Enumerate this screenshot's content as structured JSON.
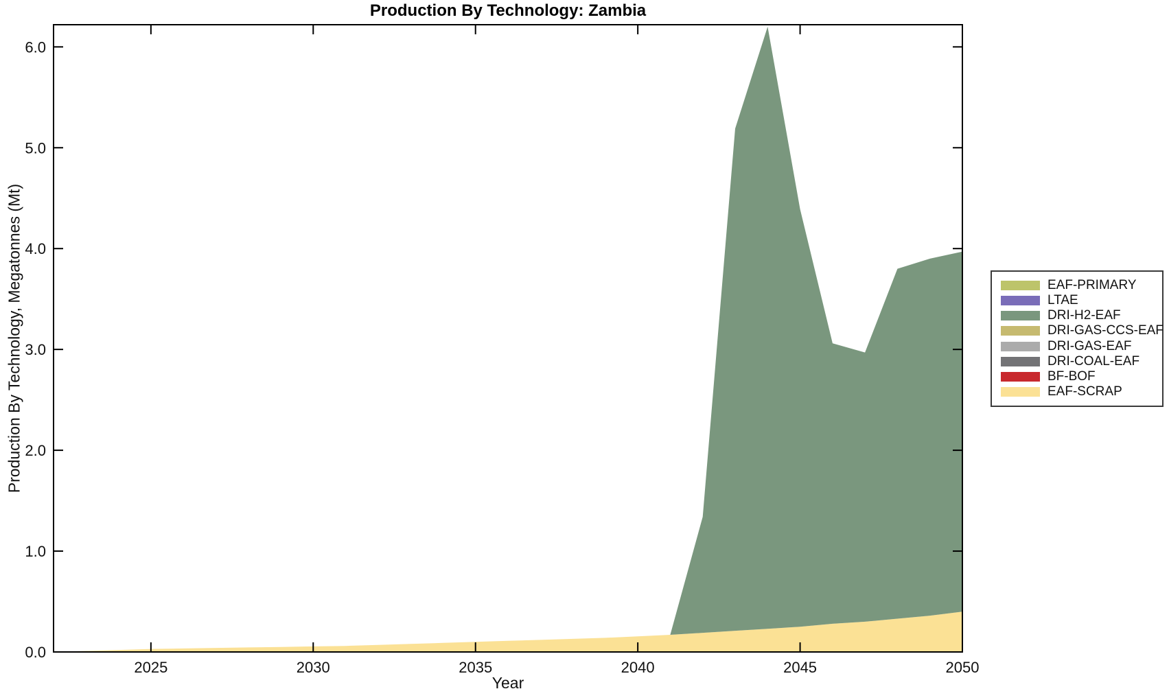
{
  "chart_data": {
    "type": "area",
    "stacked": true,
    "title": "Production By Technology: Zambia",
    "xlabel": "Year",
    "ylabel": "Production By Technology, Megatonnes (Mt)",
    "xlim": [
      2022,
      2050
    ],
    "ylim": [
      0,
      6.22
    ],
    "xticks": [
      2025,
      2030,
      2035,
      2040,
      2045,
      2050
    ],
    "yticks": [
      0.0,
      1.0,
      2.0,
      3.0,
      4.0,
      5.0,
      6.0
    ],
    "grid": false,
    "background": "#ffffff",
    "axis_color": "#000000",
    "legend_position": "outside-right",
    "stack_note": "series listed in legend order (top of stack first); areas are stacked bottom-to-top in reverse of this list",
    "years": [
      2022,
      2023,
      2024,
      2025,
      2026,
      2027,
      2028,
      2029,
      2030,
      2031,
      2032,
      2033,
      2034,
      2035,
      2036,
      2037,
      2038,
      2039,
      2040,
      2041,
      2042,
      2043,
      2044,
      2045,
      2046,
      2047,
      2048,
      2049,
      2050
    ],
    "series": [
      {
        "name": "EAF-PRIMARY",
        "color": "#bdc46a",
        "values": [
          0,
          0,
          0,
          0,
          0,
          0,
          0,
          0,
          0,
          0,
          0,
          0,
          0,
          0,
          0,
          0,
          0,
          0,
          0,
          0,
          0,
          0,
          0,
          0,
          0,
          0,
          0,
          0,
          0
        ]
      },
      {
        "name": "LTAE",
        "color": "#7a6db8",
        "values": [
          0,
          0,
          0,
          0,
          0,
          0,
          0,
          0,
          0,
          0,
          0,
          0,
          0,
          0,
          0,
          0,
          0,
          0,
          0,
          0,
          0,
          0,
          0,
          0,
          0,
          0,
          0,
          0,
          0
        ]
      },
      {
        "name": "DRI-H2-EAF",
        "color": "#7a977e",
        "values": [
          0,
          0,
          0,
          0,
          0,
          0,
          0,
          0,
          0,
          0,
          0,
          0,
          0,
          0,
          0,
          0,
          0,
          0,
          0,
          0,
          1.15,
          4.98,
          5.97,
          4.14,
          2.78,
          2.67,
          3.47,
          3.54,
          3.57
        ]
      },
      {
        "name": "DRI-GAS-CCS-EAF",
        "color": "#c6ba70",
        "values": [
          0,
          0,
          0,
          0,
          0,
          0,
          0,
          0,
          0,
          0,
          0,
          0,
          0,
          0,
          0,
          0,
          0,
          0,
          0,
          0,
          0,
          0,
          0,
          0,
          0,
          0,
          0,
          0,
          0
        ]
      },
      {
        "name": "DRI-GAS-EAF",
        "color": "#ababab",
        "values": [
          0,
          0,
          0,
          0,
          0,
          0,
          0,
          0,
          0,
          0,
          0,
          0,
          0,
          0,
          0,
          0,
          0,
          0,
          0,
          0,
          0,
          0,
          0,
          0,
          0,
          0,
          0,
          0,
          0
        ]
      },
      {
        "name": "DRI-COAL-EAF",
        "color": "#737376",
        "values": [
          0,
          0,
          0,
          0,
          0,
          0,
          0,
          0,
          0,
          0,
          0,
          0,
          0,
          0,
          0,
          0,
          0,
          0,
          0,
          0,
          0,
          0,
          0,
          0,
          0,
          0,
          0,
          0,
          0
        ]
      },
      {
        "name": "BF-BOF",
        "color": "#c8282d",
        "values": [
          0,
          0,
          0,
          0,
          0,
          0,
          0,
          0,
          0,
          0,
          0,
          0,
          0,
          0,
          0,
          0,
          0,
          0,
          0,
          0,
          0,
          0,
          0,
          0,
          0,
          0,
          0,
          0,
          0
        ]
      },
      {
        "name": "EAF-SCRAP",
        "color": "#fbe195",
        "values": [
          0.0,
          0.01,
          0.02,
          0.03,
          0.035,
          0.04,
          0.045,
          0.05,
          0.055,
          0.06,
          0.07,
          0.08,
          0.09,
          0.1,
          0.11,
          0.12,
          0.13,
          0.14,
          0.155,
          0.17,
          0.19,
          0.21,
          0.23,
          0.25,
          0.28,
          0.3,
          0.33,
          0.36,
          0.4
        ]
      }
    ]
  }
}
